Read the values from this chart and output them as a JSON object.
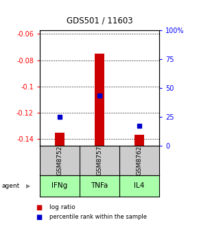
{
  "title": "GDS501 / 11603",
  "samples": [
    "GSM8752",
    "GSM8757",
    "GSM8762"
  ],
  "agents": [
    "IFNg",
    "TNFa",
    "IL4"
  ],
  "log_ratios": [
    -0.135,
    -0.075,
    -0.137
  ],
  "percentiles": [
    25,
    43,
    17
  ],
  "ylim_left": [
    -0.145,
    -0.057
  ],
  "ylim_right": [
    0,
    100
  ],
  "yticks_left": [
    -0.06,
    -0.08,
    -0.1,
    -0.12,
    -0.14
  ],
  "ytick_labels_left": [
    "-0.06",
    "-0.08",
    "-0.1",
    "-0.12",
    "-0.14"
  ],
  "yticks_right": [
    0,
    25,
    50,
    75,
    100
  ],
  "ytick_labels_right": [
    "0",
    "25",
    "50",
    "75",
    "100%"
  ],
  "bar_color": "#cc0000",
  "dot_color": "#0000cc",
  "agent_bg": "#aaffaa",
  "sample_bg": "#cccccc",
  "bar_width": 0.25
}
